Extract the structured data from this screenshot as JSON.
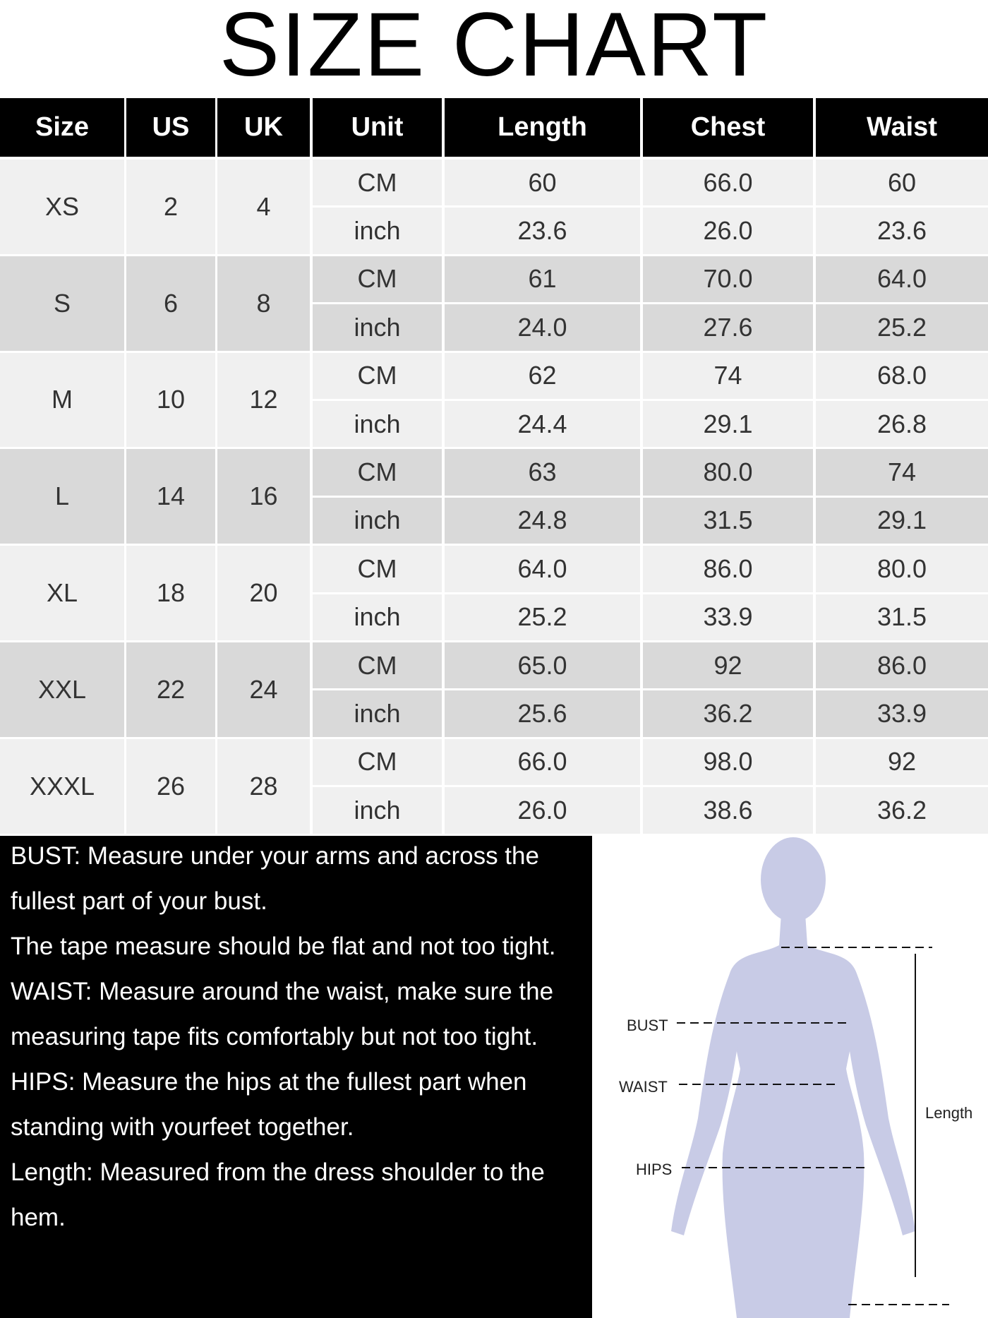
{
  "title": "SIZE CHART",
  "table": {
    "header": [
      "Size",
      "US",
      "UK",
      "Unit",
      "Length",
      "Chest",
      "Waist"
    ],
    "rows": [
      {
        "size": "XS",
        "us": "2",
        "uk": "4",
        "measurements": [
          {
            "unit": "CM",
            "values": [
              "60",
              "66.0",
              "60"
            ]
          },
          {
            "unit": "inch",
            "values": [
              "23.6",
              "26.0",
              "23.6"
            ]
          }
        ]
      },
      {
        "size": "S",
        "us": "6",
        "uk": "8",
        "measurements": [
          {
            "unit": "CM",
            "values": [
              "61",
              "70.0",
              "64.0"
            ]
          },
          {
            "unit": "inch",
            "values": [
              "24.0",
              "27.6",
              "25.2"
            ]
          }
        ]
      },
      {
        "size": "M",
        "us": "10",
        "uk": "12",
        "measurements": [
          {
            "unit": "CM",
            "values": [
              "62",
              "74",
              "68.0"
            ]
          },
          {
            "unit": "inch",
            "values": [
              "24.4",
              "29.1",
              "26.8"
            ]
          }
        ]
      },
      {
        "size": "L",
        "us": "14",
        "uk": "16",
        "measurements": [
          {
            "unit": "CM",
            "values": [
              "63",
              "80.0",
              "74"
            ]
          },
          {
            "unit": "inch",
            "values": [
              "24.8",
              "31.5",
              "29.1"
            ]
          }
        ]
      },
      {
        "size": "XL",
        "us": "18",
        "uk": "20",
        "measurements": [
          {
            "unit": "CM",
            "values": [
              "64.0",
              "86.0",
              "80.0"
            ]
          },
          {
            "unit": "inch",
            "values": [
              "25.2",
              "33.9",
              "31.5"
            ]
          }
        ]
      },
      {
        "size": "XXL",
        "us": "22",
        "uk": "24",
        "measurements": [
          {
            "unit": "CM",
            "values": [
              "65.0",
              "92",
              "86.0"
            ]
          },
          {
            "unit": "inch",
            "values": [
              "25.6",
              "36.2",
              "33.9"
            ]
          }
        ]
      },
      {
        "size": "XXXL",
        "us": "26",
        "uk": "28",
        "measurements": [
          {
            "unit": "CM",
            "values": [
              "66.0",
              "98.0",
              "92"
            ]
          },
          {
            "unit": "inch",
            "values": [
              "26.0",
              "38.6",
              "36.2"
            ]
          }
        ]
      }
    ]
  },
  "notes": [
    "BUST: Measure under your arms and across the fullest part of your bust.",
    "The tape measure should be flat and not too tight.",
    "WAIST: Measure around the waist, make sure the measuring tape fits comfortably but not too tight.",
    "HIPS: Measure the hips at the fullest part when standing with yourfeet together.",
    "Length: Measured from the dress shoulder to the hem."
  ],
  "figure": {
    "labels": {
      "bust": "BUST",
      "waist": "WAIST",
      "hips": "HIPS",
      "length": "Length"
    }
  }
}
